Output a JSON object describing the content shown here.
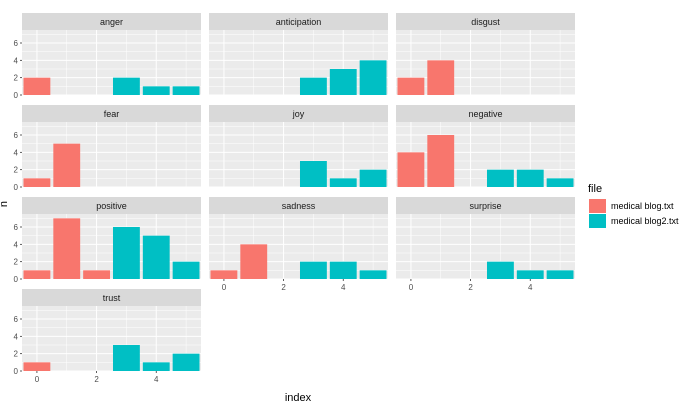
{
  "chart_data": {
    "type": "bar",
    "xlabel": "index",
    "ylabel": "n",
    "ylim": [
      0,
      7.5
    ],
    "xlim": [
      -0.5,
      5.5
    ],
    "x_ticks": [
      0,
      2,
      4
    ],
    "y_ticks": [
      0,
      2,
      4,
      6
    ],
    "grid": true,
    "legend": {
      "title": "file",
      "placement": "right",
      "entries": [
        {
          "name": "medical blog.txt",
          "color": "#F8766D"
        },
        {
          "name": "medical blog2.txt",
          "color": "#00BFC4"
        }
      ]
    },
    "colors": {
      "panel_bg": "#EBEBEB",
      "strip_bg": "#D9D9D9",
      "grid": "#FFFFFF"
    },
    "panels": [
      {
        "name": "anger",
        "bars": [
          {
            "x": 0,
            "n": 2,
            "file": "medical blog.txt"
          },
          {
            "x": 3,
            "n": 2,
            "file": "medical blog2.txt"
          },
          {
            "x": 4,
            "n": 1,
            "file": "medical blog2.txt"
          },
          {
            "x": 5,
            "n": 1,
            "file": "medical blog2.txt"
          }
        ]
      },
      {
        "name": "anticipation",
        "bars": [
          {
            "x": 3,
            "n": 2,
            "file": "medical blog2.txt"
          },
          {
            "x": 4,
            "n": 3,
            "file": "medical blog2.txt"
          },
          {
            "x": 5,
            "n": 4,
            "file": "medical blog2.txt"
          }
        ]
      },
      {
        "name": "disgust",
        "bars": [
          {
            "x": 0,
            "n": 2,
            "file": "medical blog.txt"
          },
          {
            "x": 1,
            "n": 4,
            "file": "medical blog.txt"
          }
        ]
      },
      {
        "name": "fear",
        "bars": [
          {
            "x": 0,
            "n": 1,
            "file": "medical blog.txt"
          },
          {
            "x": 1,
            "n": 5,
            "file": "medical blog.txt"
          }
        ]
      },
      {
        "name": "joy",
        "bars": [
          {
            "x": 3,
            "n": 3,
            "file": "medical blog2.txt"
          },
          {
            "x": 4,
            "n": 1,
            "file": "medical blog2.txt"
          },
          {
            "x": 5,
            "n": 2,
            "file": "medical blog2.txt"
          }
        ]
      },
      {
        "name": "negative",
        "bars": [
          {
            "x": 0,
            "n": 4,
            "file": "medical blog.txt"
          },
          {
            "x": 1,
            "n": 6,
            "file": "medical blog.txt"
          },
          {
            "x": 3,
            "n": 2,
            "file": "medical blog2.txt"
          },
          {
            "x": 4,
            "n": 2,
            "file": "medical blog2.txt"
          },
          {
            "x": 5,
            "n": 1,
            "file": "medical blog2.txt"
          }
        ]
      },
      {
        "name": "positive",
        "bars": [
          {
            "x": 0,
            "n": 1,
            "file": "medical blog.txt"
          },
          {
            "x": 1,
            "n": 7,
            "file": "medical blog.txt"
          },
          {
            "x": 2,
            "n": 1,
            "file": "medical blog.txt"
          },
          {
            "x": 3,
            "n": 6,
            "file": "medical blog2.txt"
          },
          {
            "x": 4,
            "n": 5,
            "file": "medical blog2.txt"
          },
          {
            "x": 5,
            "n": 2,
            "file": "medical blog2.txt"
          }
        ]
      },
      {
        "name": "sadness",
        "bars": [
          {
            "x": 0,
            "n": 1,
            "file": "medical blog.txt"
          },
          {
            "x": 1,
            "n": 4,
            "file": "medical blog.txt"
          },
          {
            "x": 3,
            "n": 2,
            "file": "medical blog2.txt"
          },
          {
            "x": 4,
            "n": 2,
            "file": "medical blog2.txt"
          },
          {
            "x": 5,
            "n": 1,
            "file": "medical blog2.txt"
          }
        ]
      },
      {
        "name": "surprise",
        "bars": [
          {
            "x": 3,
            "n": 2,
            "file": "medical blog2.txt"
          },
          {
            "x": 4,
            "n": 1,
            "file": "medical blog2.txt"
          },
          {
            "x": 5,
            "n": 1,
            "file": "medical blog2.txt"
          }
        ]
      },
      {
        "name": "trust",
        "bars": [
          {
            "x": 0,
            "n": 1,
            "file": "medical blog.txt"
          },
          {
            "x": 3,
            "n": 3,
            "file": "medical blog2.txt"
          },
          {
            "x": 4,
            "n": 1,
            "file": "medical blog2.txt"
          },
          {
            "x": 5,
            "n": 2,
            "file": "medical blog2.txt"
          }
        ]
      }
    ]
  }
}
